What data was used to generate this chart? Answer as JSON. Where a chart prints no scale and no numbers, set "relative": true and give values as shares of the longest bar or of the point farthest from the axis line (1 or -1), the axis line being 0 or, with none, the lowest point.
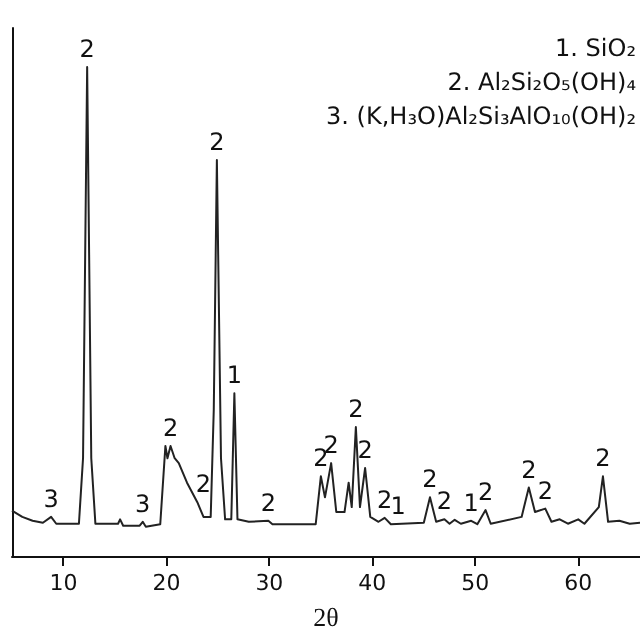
{
  "chart_data": {
    "type": "line",
    "relative": true,
    "xlabel": "2θ",
    "xlim": [
      5,
      66
    ],
    "xticks": [
      10,
      20,
      30,
      40,
      50,
      60
    ],
    "tick_labels": "x",
    "grid": false,
    "marker": "none",
    "series": [
      {
        "color": "#222222",
        "x": [
          5,
          6,
          7,
          8,
          8.8,
          9.3,
          11.5,
          11.9,
          12.3,
          12.7,
          13.1,
          15.3,
          15.5,
          15.8,
          17.4,
          17.7,
          18.0,
          19.4,
          19.9,
          20.1,
          20.4,
          20.8,
          21.2,
          22,
          23,
          23.6,
          24.3,
          24.6,
          24.9,
          25.3,
          25.7,
          26.3,
          26.6,
          26.9,
          28,
          29.9,
          30.3,
          34.5,
          35,
          35.4,
          36,
          36.5,
          37.3,
          37.7,
          38,
          38.4,
          38.8,
          39.3,
          39.8,
          40.6,
          41.2,
          41.8,
          45,
          45.6,
          46.2,
          47,
          47.5,
          48,
          48.6,
          49.6,
          50.2,
          51,
          51.5,
          54.5,
          55.2,
          55.8,
          56.8,
          57.4,
          58.2,
          59,
          60,
          60.6,
          62,
          62.4,
          62.9,
          64,
          65,
          66
        ],
        "values": [
          0.093,
          0.08,
          0.072,
          0.068,
          0.08,
          0.066,
          0.066,
          0.2,
          1.0,
          0.2,
          0.066,
          0.066,
          0.075,
          0.062,
          0.062,
          0.07,
          0.06,
          0.065,
          0.225,
          0.2,
          0.225,
          0.2,
          0.19,
          0.15,
          0.11,
          0.08,
          0.08,
          0.3,
          0.81,
          0.2,
          0.075,
          0.075,
          0.333,
          0.075,
          0.07,
          0.072,
          0.065,
          0.065,
          0.163,
          0.12,
          0.19,
          0.09,
          0.09,
          0.15,
          0.1,
          0.264,
          0.1,
          0.18,
          0.08,
          0.07,
          0.078,
          0.065,
          0.068,
          0.12,
          0.07,
          0.075,
          0.066,
          0.074,
          0.066,
          0.072,
          0.065,
          0.094,
          0.066,
          0.08,
          0.14,
          0.09,
          0.097,
          0.07,
          0.075,
          0.066,
          0.075,
          0.066,
          0.1,
          0.163,
          0.07,
          0.072,
          0.066,
          0.068
        ]
      }
    ],
    "annotations": [
      "1. SiO₂",
      "2. Al₂Si₂O₅(OH)₄",
      "3. (K,H₃O)Al₂Si₃AlO₁₀(OH)₂",
      {
        "text": "3",
        "x": 8.8,
        "y": 0.08
      },
      {
        "text": "2",
        "x": 12.3,
        "y": 1.0
      },
      {
        "text": "3",
        "x": 17.7,
        "y": 0.07
      },
      {
        "text": "2",
        "x": 20.4,
        "y": 0.225
      },
      {
        "text": "2",
        "x": 23.6,
        "y": 0.11
      },
      {
        "text": "2",
        "x": 24.9,
        "y": 0.81
      },
      {
        "text": "1",
        "x": 26.6,
        "y": 0.333
      },
      {
        "text": "2",
        "x": 29.9,
        "y": 0.072
      },
      {
        "text": "2",
        "x": 35,
        "y": 0.163
      },
      {
        "text": "2",
        "x": 36,
        "y": 0.19
      },
      {
        "text": "2",
        "x": 38.4,
        "y": 0.264
      },
      {
        "text": "2",
        "x": 39.3,
        "y": 0.18
      },
      {
        "text": "2",
        "x": 41.2,
        "y": 0.078
      },
      {
        "text": "1",
        "x": 42.5,
        "y": 0.065
      },
      {
        "text": "2",
        "x": 45.6,
        "y": 0.12
      },
      {
        "text": "2",
        "x": 47,
        "y": 0.075
      },
      {
        "text": "1",
        "x": 49.6,
        "y": 0.072
      },
      {
        "text": "2",
        "x": 51,
        "y": 0.094
      },
      {
        "text": "2",
        "x": 55.2,
        "y": 0.14
      },
      {
        "text": "2",
        "x": 56.8,
        "y": 0.097
      },
      {
        "text": "2",
        "x": 62.4,
        "y": 0.163
      }
    ]
  }
}
